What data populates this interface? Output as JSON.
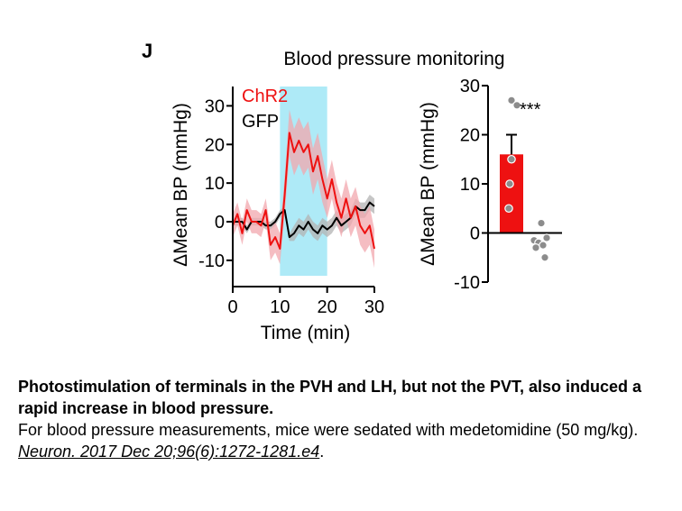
{
  "panel_label": "J",
  "figure_title": "Blood pressure monitoring",
  "caption": {
    "bold_text": "Photostimulation of terminals in the PVH and LH, but not the PVT, also induced a rapid increase in blood pressure.",
    "body_text": "For blood pressure measurements, mice were sedated with medetomidine (50 mg/kg).",
    "citation": "Neuron. 2017 Dec 20;96(6):1272-1281.e4",
    "trailing": "."
  },
  "colors": {
    "chr2": "#ee1111",
    "chr2_band": "#f2a7ad",
    "gfp": "#000000",
    "gfp_band": "#b3b3b3",
    "stim": "#aeeaf7",
    "points": "#8c8c8c"
  },
  "chart_data": [
    {
      "type": "line",
      "title": "Blood pressure monitoring",
      "xlabel": "Time (min)",
      "ylabel": "ΔMean BP (mmHg)",
      "xlim": [
        0,
        30
      ],
      "ylim": [
        -14,
        35
      ],
      "xticks": [
        0,
        10,
        20,
        30
      ],
      "yticks": [
        -10,
        0,
        10,
        20,
        30
      ],
      "grid": false,
      "legend_position": "top-left",
      "stimulation_window": [
        10,
        20
      ],
      "x": [
        0,
        1,
        2,
        3,
        4,
        5,
        6,
        7,
        8,
        9,
        10,
        11,
        12,
        13,
        14,
        15,
        16,
        17,
        18,
        19,
        20,
        21,
        22,
        23,
        24,
        25,
        26,
        27,
        28,
        29,
        30
      ],
      "series": [
        {
          "name": "ChR2",
          "values": [
            -1,
            2,
            -3,
            3,
            0,
            0,
            -1,
            3,
            -6,
            -4,
            -7,
            7,
            23,
            18,
            21,
            18,
            20,
            13,
            17,
            11,
            6,
            11,
            5,
            1,
            6,
            1,
            4,
            -1,
            -3,
            -1,
            -7
          ],
          "error": [
            3,
            3,
            3,
            3,
            3,
            3,
            3,
            3,
            4,
            4,
            4,
            5,
            6,
            6,
            6,
            6,
            6,
            6,
            6,
            6,
            5,
            5,
            5,
            5,
            5,
            5,
            5,
            5,
            5,
            5,
            5
          ]
        },
        {
          "name": "GFP",
          "values": [
            0,
            0,
            0,
            -2,
            0,
            0,
            0,
            -1,
            -1,
            0,
            2,
            3,
            -4,
            -3,
            -1,
            -2,
            0,
            -2,
            -3,
            -1,
            -2,
            -1,
            1,
            -1,
            0,
            1,
            4,
            3,
            3,
            5,
            4
          ],
          "error": [
            1,
            1,
            1,
            1,
            1,
            1,
            1,
            1,
            1,
            1,
            1,
            1,
            1,
            2,
            2,
            2,
            2,
            2,
            2,
            2,
            2,
            2,
            2,
            2,
            2,
            2,
            2,
            2,
            2,
            2,
            2
          ]
        }
      ]
    },
    {
      "type": "bar",
      "ylabel": "ΔMean BP (mmHg)",
      "ylim": [
        -10,
        30
      ],
      "yticks": [
        -10,
        0,
        10,
        20,
        30
      ],
      "categories": [
        "ChR2",
        "GFP"
      ],
      "values": [
        16,
        -1.5
      ],
      "error": [
        4,
        1
      ],
      "points": [
        [
          27,
          26,
          15,
          10,
          5
        ],
        [
          2,
          -1,
          -1.5,
          -2,
          -2.5,
          -3,
          -5
        ]
      ],
      "annotation": "***"
    }
  ]
}
